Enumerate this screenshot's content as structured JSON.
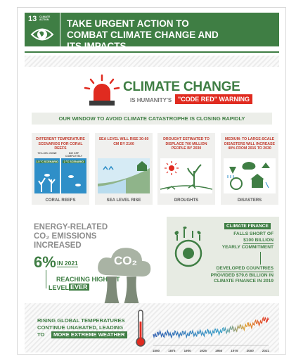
{
  "header": {
    "goal_number": "13",
    "goal_name": "CLIMATE ACTION",
    "title": "TAKE URGENT ACTION TO COMBAT CLIMATE CHANGE AND ITS IMPACTS"
  },
  "headline": {
    "title": "CLIMATE CHANGE",
    "subtitle": "IS HUMANITY'S",
    "badge": "\"CODE RED\" WARNING"
  },
  "banner": "OUR WINDOW TO AVOID CLIMATE CATASTROPHE IS CLOSING RAPIDLY",
  "cards": [
    {
      "text": "DIFFERENT TEMPERATURE SCENARIOS FOR CORAL REEFS",
      "label": "CORAL REEFS",
      "scenarios": [
        {
          "outcome": "70%-90% GONE",
          "scenario": "1.5 °C SCENARIO"
        },
        {
          "outcome": "DIE OFF COMPLETELY",
          "scenario": "2 °C SCENARIO"
        }
      ]
    },
    {
      "text": "SEA LEVEL WILL RISE 30-60 CM BY 2100",
      "label": "SEA LEVEL RISE"
    },
    {
      "text": "DROUGHT ESTIMATED TO DISPLACE 700 MILLION PEOPLE BY 2030",
      "label": "DROUGHTS"
    },
    {
      "text": "MEDIUM- TO LARGE-SCALE DISASTERS WILL INCREASE 40% FROM 2015 TO 2030",
      "label": "DISASTERS"
    }
  ],
  "emissions": {
    "text": "ENERGY-RELATED CO₂ EMISSIONS INCREASED",
    "value": "6%",
    "year": "IN 2021",
    "note": "REACHING HIGHEST",
    "note_end": "LEVEL",
    "highlight": "EVER",
    "icon_label": "CO₂"
  },
  "finance": {
    "tag": "CLIMATE FINANCE",
    "line1": "FALLS SHORT OF",
    "amount": "$100 BILLION",
    "line2": "YEARLY COMMITMENT",
    "tag2": "DEVELOPED COUNTRIES",
    "detail": "PROVIDED $79.6 BILLION IN CLIMATE FINANCE IN 2019"
  },
  "temperature": {
    "text": "RISING GLOBAL TEMPERATURES CONTINUE UNABATED, LEADING TO",
    "highlight": "MORE EXTREME WEATHER",
    "years": [
      "1850",
      "1875",
      "1900",
      "1925",
      "1950",
      "1975",
      "2000",
      "2021"
    ]
  }
}
